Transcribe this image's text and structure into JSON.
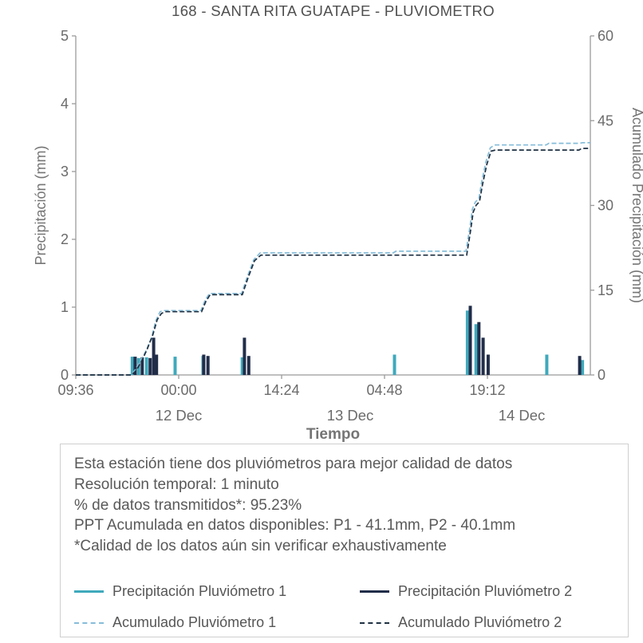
{
  "header": {
    "title": "168 - SANTA RITA GUATAPE - PLUVIOMETRO"
  },
  "chart_data": {
    "type": "bar",
    "title": "168 - SANTA RITA GUATAPE - PLUVIOMETRO",
    "x_axis": {
      "label": "Tiempo",
      "range_hours": [
        0,
        72
      ],
      "ticks": [
        {
          "t": 0.0,
          "label": "09:36"
        },
        {
          "t": 14.4,
          "label": "00:00"
        },
        {
          "t": 28.8,
          "label": "14:24"
        },
        {
          "t": 43.2,
          "label": "04:48"
        },
        {
          "t": 57.6,
          "label": "19:12"
        }
      ],
      "date_ticks": [
        {
          "t": 14.4,
          "label": "12 Dec"
        },
        {
          "t": 38.4,
          "label": "13 Dec"
        },
        {
          "t": 62.4,
          "label": "14 Dec"
        }
      ]
    },
    "y_left": {
      "label": "Precipitación (mm)",
      "range": [
        0,
        5
      ],
      "ticks": [
        0,
        1,
        2,
        3,
        4,
        5
      ]
    },
    "y_right": {
      "label": "Acumulado Precipitación (mm)",
      "range": [
        0,
        60
      ],
      "ticks": [
        0,
        15,
        30,
        45,
        60
      ]
    },
    "style": {
      "axis_color": "#9b9b9b",
      "tick_color": "#6b6b6b",
      "label_color": "#757575",
      "grid": false,
      "legend_position": "bottom-box"
    },
    "series": [
      {
        "name": "Precipitación Pluviómetro 1",
        "type": "bar",
        "axis": "left",
        "color": "#3fa9bc",
        "dash": false,
        "points": [
          {
            "t": 7.9,
            "h": 0.27
          },
          {
            "t": 8.8,
            "h": 0.25
          },
          {
            "t": 9.9,
            "h": 0.26
          },
          {
            "t": 13.9,
            "h": 0.27
          },
          {
            "t": 17.8,
            "h": 0.28
          },
          {
            "t": 23.3,
            "h": 0.26
          },
          {
            "t": 44.6,
            "h": 0.3
          },
          {
            "t": 54.8,
            "h": 0.95
          },
          {
            "t": 56.0,
            "h": 0.75
          },
          {
            "t": 65.9,
            "h": 0.3
          },
          {
            "t": 70.9,
            "h": 0.22
          }
        ]
      },
      {
        "name": "Precipitación Pluviómetro 2",
        "type": "bar",
        "axis": "left",
        "color": "#212d49",
        "dash": false,
        "points": [
          {
            "t": 8.3,
            "h": 0.27
          },
          {
            "t": 9.3,
            "h": 0.26
          },
          {
            "t": 10.4,
            "h": 0.25
          },
          {
            "t": 10.9,
            "h": 0.55
          },
          {
            "t": 11.3,
            "h": 0.3
          },
          {
            "t": 17.9,
            "h": 0.3
          },
          {
            "t": 18.5,
            "h": 0.28
          },
          {
            "t": 23.6,
            "h": 0.55
          },
          {
            "t": 24.2,
            "h": 0.28
          },
          {
            "t": 55.2,
            "h": 1.02
          },
          {
            "t": 56.4,
            "h": 0.78
          },
          {
            "t": 57.0,
            "h": 0.55
          },
          {
            "t": 57.7,
            "h": 0.3
          },
          {
            "t": 70.5,
            "h": 0.28
          }
        ]
      },
      {
        "name": "Acumulado Pluviómetro 1",
        "type": "line",
        "axis": "right",
        "color": "#86bdd9",
        "dash": true,
        "points": [
          [
            0,
            0
          ],
          [
            7.6,
            0
          ],
          [
            8.2,
            0.7
          ],
          [
            9.0,
            2.4
          ],
          [
            9.8,
            4.2
          ],
          [
            10.6,
            6.6
          ],
          [
            11.2,
            9.6
          ],
          [
            11.8,
            11.2
          ],
          [
            12.3,
            11.4
          ],
          [
            17.5,
            11.4
          ],
          [
            18.1,
            13.2
          ],
          [
            18.7,
            14.4
          ],
          [
            23.2,
            14.4
          ],
          [
            24.0,
            17.4
          ],
          [
            24.9,
            20.4
          ],
          [
            25.8,
            21.6
          ],
          [
            44.4,
            21.6
          ],
          [
            44.8,
            21.9
          ],
          [
            54.6,
            21.9
          ],
          [
            55.1,
            25.8
          ],
          [
            55.5,
            29.4
          ],
          [
            55.9,
            30.6
          ],
          [
            56.4,
            31.2
          ],
          [
            56.8,
            34.2
          ],
          [
            57.4,
            37.8
          ],
          [
            58.0,
            40.2
          ],
          [
            58.6,
            40.7
          ],
          [
            65.8,
            40.7
          ],
          [
            66.2,
            41.0
          ],
          [
            70.5,
            41.0
          ],
          [
            70.9,
            41.1
          ],
          [
            72,
            41.1
          ]
        ]
      },
      {
        "name": "Acumulado Pluviómetro 2",
        "type": "line",
        "axis": "right",
        "color": "#1f3143",
        "dash": true,
        "points": [
          [
            0,
            0
          ],
          [
            7.8,
            0
          ],
          [
            8.4,
            0.7
          ],
          [
            9.2,
            2.4
          ],
          [
            10.0,
            4.6
          ],
          [
            10.8,
            7.2
          ],
          [
            11.4,
            9.8
          ],
          [
            12.0,
            10.9
          ],
          [
            12.5,
            11.2
          ],
          [
            17.6,
            11.2
          ],
          [
            18.2,
            13.0
          ],
          [
            18.8,
            14.2
          ],
          [
            23.3,
            14.2
          ],
          [
            24.1,
            17.2
          ],
          [
            25.0,
            20.2
          ],
          [
            25.9,
            21.2
          ],
          [
            54.7,
            21.2
          ],
          [
            55.2,
            25.2
          ],
          [
            55.6,
            28.8
          ],
          [
            56.0,
            30.0
          ],
          [
            56.5,
            30.7
          ],
          [
            56.9,
            33.6
          ],
          [
            57.5,
            37.2
          ],
          [
            58.1,
            39.6
          ],
          [
            58.7,
            39.8
          ],
          [
            70.4,
            39.8
          ],
          [
            70.8,
            40.1
          ],
          [
            72,
            40.1
          ]
        ]
      }
    ]
  },
  "info_box": {
    "lines": [
      "Esta estación tiene dos pluviómetros para mejor calidad de datos",
      "Resolución temporal: 1 minuto",
      "% de datos transmitidos*: 95.23%",
      "PPT Acumulada en datos disponibles: P1 - 41.1mm, P2 - 40.1mm",
      "*Calidad de los datos aún sin verificar exhaustivamente"
    ]
  },
  "legend": {
    "items": [
      {
        "label": "Precipitación Pluviómetro 1",
        "color": "#3fa9bc",
        "dash": false
      },
      {
        "label": "Precipitación Pluviómetro 2",
        "color": "#212d49",
        "dash": false
      },
      {
        "label": "Acumulado Pluviómetro 1",
        "color": "#86bdd9",
        "dash": true
      },
      {
        "label": "Acumulado Pluviómetro 2",
        "color": "#1f3143",
        "dash": true
      }
    ]
  }
}
